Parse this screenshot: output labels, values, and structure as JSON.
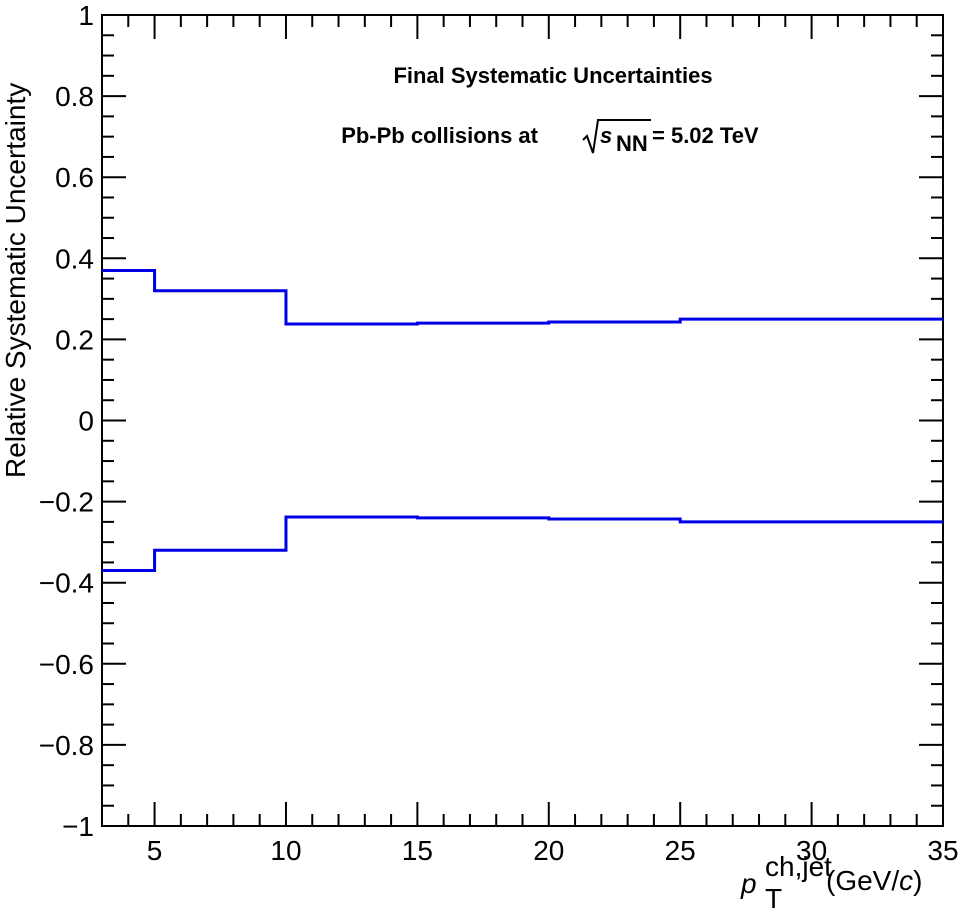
{
  "chart_data": {
    "type": "line",
    "title": "Final Systematic Uncertainties",
    "subtitle_prefix": "Pb-Pb collisions at",
    "subtitle_sqrt_var": "s",
    "subtitle_sqrt_sub": "NN",
    "subtitle_suffix": "= 5.02 TeV",
    "xlabel_var": "p",
    "xlabel_sup": "ch,jet",
    "xlabel_sub": "T",
    "xlabel_unit_open": "(GeV/",
    "xlabel_unit_var": "c",
    "xlabel_unit_close": ")",
    "ylabel": "Relative Systematic Uncertainty",
    "xlim": [
      3,
      35
    ],
    "ylim": [
      -1,
      1
    ],
    "xticks": [
      "5",
      "10",
      "15",
      "20",
      "25",
      "30",
      "35"
    ],
    "yticks": [
      "−1",
      "−0.8",
      "−0.6",
      "−0.4",
      "−0.2",
      "0",
      "0.2",
      "0.4",
      "0.6",
      "0.8",
      "1"
    ],
    "bin_edges": [
      3,
      5,
      10,
      15,
      20,
      25,
      35
    ],
    "series": [
      {
        "values": [
          0.37,
          0.32,
          0.238,
          0.24,
          0.243,
          0.25
        ]
      },
      {
        "values": [
          -0.37,
          -0.32,
          -0.238,
          -0.24,
          -0.243,
          -0.25
        ]
      }
    ],
    "line_color": "#0000e6",
    "grid": false
  }
}
